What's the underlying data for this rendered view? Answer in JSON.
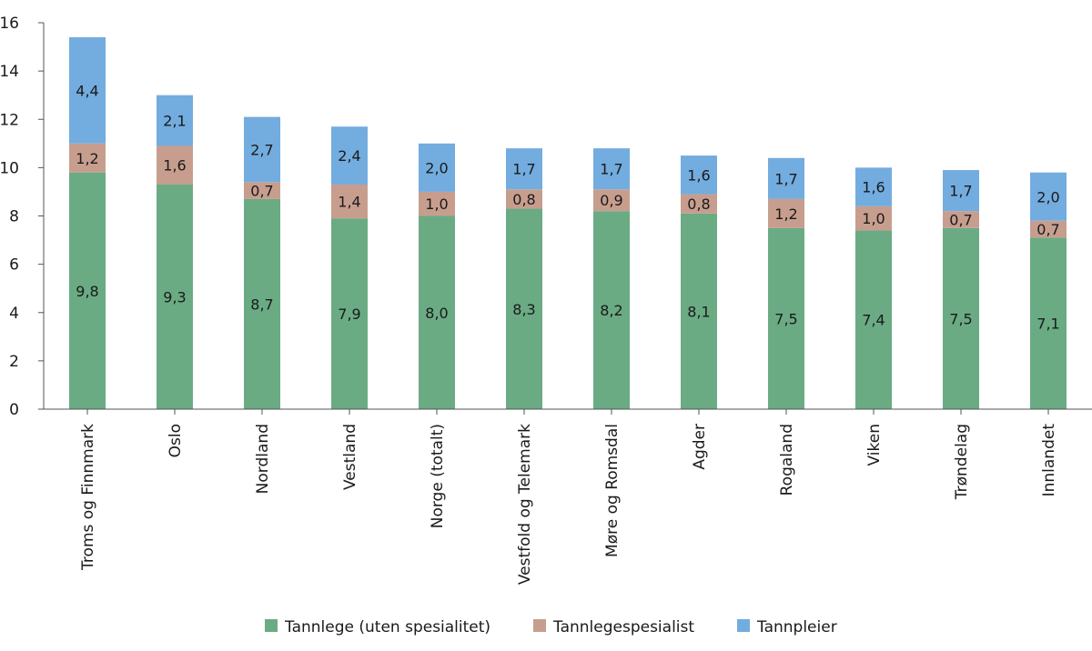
{
  "chart_data": {
    "type": "bar",
    "stacked": true,
    "title": "",
    "xlabel": "",
    "ylabel": "",
    "ylim": [
      0,
      16
    ],
    "yticks": [
      0,
      2,
      4,
      6,
      8,
      10,
      12,
      14,
      16
    ],
    "grid": false,
    "legend_position": "bottom",
    "categories": [
      "Troms og Finnmark",
      "Oslo",
      "Nordland",
      "Vestland",
      "Norge (totalt)",
      "Vestfold og Telemark",
      "Møre og Romsdal",
      "Agder",
      "Rogaland",
      "Viken",
      "Trøndelag",
      "Innlandet"
    ],
    "series": [
      {
        "name": "Tannlege (uten spesialitet)",
        "color": "#6aab84",
        "values": [
          9.8,
          9.3,
          8.7,
          7.9,
          8.0,
          8.3,
          8.2,
          8.1,
          7.5,
          7.4,
          7.5,
          7.1
        ],
        "labels": [
          "9,8",
          "9,3",
          "8,7",
          "7,9",
          "8,0",
          "8,3",
          "8,2",
          "8,1",
          "7,5",
          "7,4",
          "7,5",
          "7,1"
        ]
      },
      {
        "name": "Tannlegespesialist",
        "color": "#c79e8e",
        "values": [
          1.2,
          1.6,
          0.7,
          1.4,
          1.0,
          0.8,
          0.9,
          0.8,
          1.2,
          1.0,
          0.7,
          0.7
        ],
        "labels": [
          "1,2",
          "1,6",
          "0,7",
          "1,4",
          "1,0",
          "0,8",
          "0,9",
          "0,8",
          "1,2",
          "1,0",
          "0,7",
          "0,7"
        ]
      },
      {
        "name": "Tannpleier",
        "color": "#73acdf",
        "values": [
          4.4,
          2.1,
          2.7,
          2.4,
          2.0,
          1.7,
          1.7,
          1.6,
          1.7,
          1.6,
          1.7,
          2.0
        ],
        "labels": [
          "4,4",
          "2,1",
          "2,7",
          "2,4",
          "2,0",
          "1,7",
          "1,7",
          "1,6",
          "1,7",
          "1,6",
          "1,7",
          "2,0"
        ]
      }
    ]
  }
}
